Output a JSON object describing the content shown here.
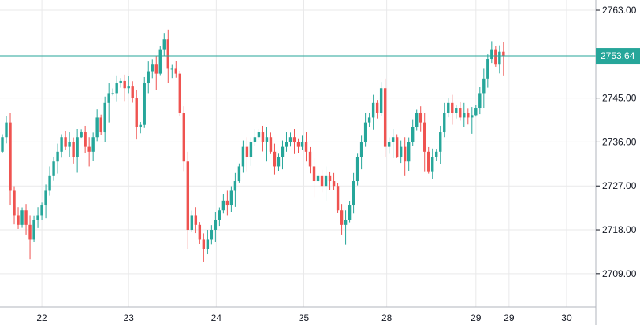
{
  "chart_data": {
    "type": "candlestick",
    "title": "",
    "ylim": [
      2702.2,
      2765.1
    ],
    "y_ticks": [
      2763.0,
      2745.0,
      2736.0,
      2727.0,
      2718.0,
      2709.0
    ],
    "y_tick_labels": [
      "2763.00",
      "2745.00",
      "2736.00",
      "2727.00",
      "2718.00",
      "2709.00"
    ],
    "x_ticks": [
      {
        "label": "22",
        "index": 10
      },
      {
        "label": "23",
        "index": 32
      },
      {
        "label": "24",
        "index": 54.2
      },
      {
        "label": "25",
        "index": 76.4
      },
      {
        "label": "28",
        "index": 97.4
      },
      {
        "label": "29",
        "index": 120
      },
      {
        "label": "29",
        "index": 128.4
      },
      {
        "label": "30",
        "index": 143
      }
    ],
    "x_range": [
      -0.6,
      150.4
    ],
    "grid": true,
    "last_price": 2753.64,
    "last_price_label": "2753.64",
    "first_open": 2734,
    "close": [
      2737,
      2740,
      2726,
      2721,
      2719,
      2722,
      2719,
      2716,
      2720,
      2721,
      2723,
      2726,
      2729,
      2732,
      2734,
      2737,
      2735,
      2736,
      2733,
      2737,
      2738,
      2735,
      2734,
      2737,
      2741,
      2738,
      2744,
      2746,
      2746,
      2748,
      2748.5,
      2747,
      2747.5,
      2745,
      2739,
      2739.5,
      2748,
      2750.5,
      2752,
      2750,
      2755,
      2757,
      2751,
      2751,
      2750,
      2742,
      2732,
      2718,
      2721,
      2719,
      2716,
      2714,
      2716,
      2718,
      2720,
      2722,
      2724,
      2723,
      2726,
      2728,
      2731,
      2735,
      2733,
      2736,
      2737,
      2738,
      2736,
      2737,
      2734,
      2731,
      2733,
      2735,
      2736,
      2737,
      2736,
      2735,
      2736,
      2734,
      2731,
      2728,
      2729,
      2727,
      2729,
      2728,
      2727,
      2722,
      2719,
      2720,
      2723,
      2728,
      2733,
      2736,
      2740,
      2741,
      2744,
      2742,
      2747,
      2735,
      2736,
      2737,
      2733,
      2735,
      2732,
      2736,
      2739,
      2742,
      2740,
      2734,
      2730,
      2733,
      2734,
      2738,
      2742,
      2744,
      2742,
      2743,
      2741,
      2742,
      2741,
      2741.5,
      2743,
      2746,
      2749,
      2753,
      2755,
      2752,
      2754.5,
      2753.64
    ],
    "colors": {
      "up": "#26a69a",
      "down": "#ef5350",
      "grid": "#e9e9ea",
      "price_line": "#26a69a",
      "axis": "#b2b5be"
    }
  }
}
